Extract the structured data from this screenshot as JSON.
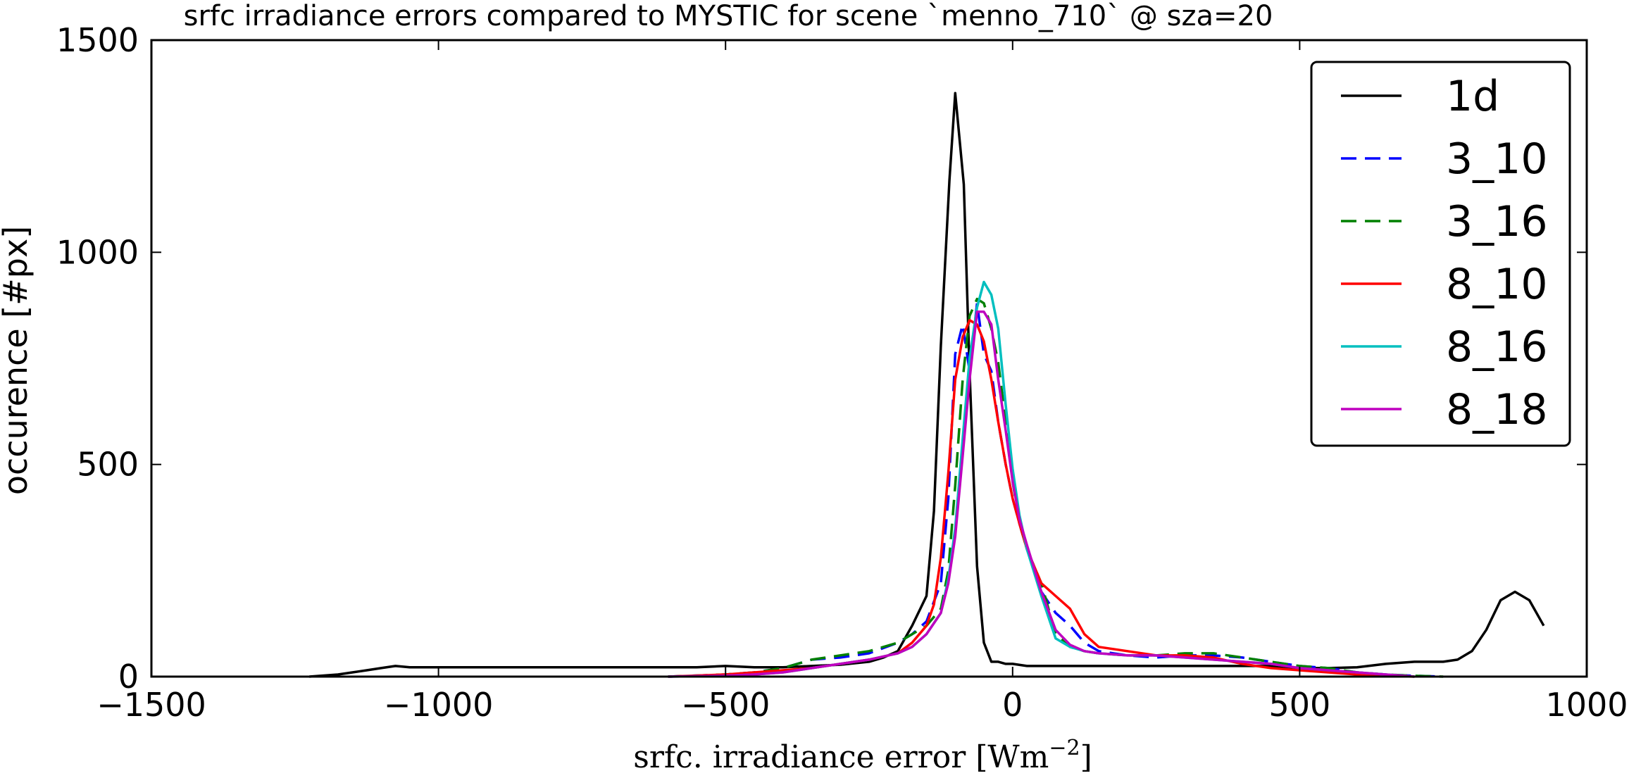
{
  "chart_data": {
    "type": "line",
    "title": "srfc irradiance errors compared to MYSTIC for scene `menno_710` @ sza=20",
    "xlabel": "srfc.  irradiance error [Wm",
    "xlabel_exp": "−2",
    "xlabel_close": "]",
    "ylabel": "occurence [#px]",
    "xlim": [
      -1500,
      1000
    ],
    "ylim": [
      0,
      1500
    ],
    "xticks": [
      -1500,
      -1000,
      -500,
      0,
      500,
      1000
    ],
    "xtick_labels": [
      "−1500",
      "−1000",
      "−500",
      "0",
      "500",
      "1000"
    ],
    "yticks": [
      0,
      500,
      1000,
      1500
    ],
    "ytick_labels": [
      "0",
      "500",
      "1000",
      "1500"
    ],
    "grid": false,
    "legend_position": "top-right",
    "series": [
      {
        "name": "1d",
        "color": "#000000",
        "dash": "solid",
        "x": [
          -1225,
          -1175,
          -1150,
          -1125,
          -1100,
          -1075,
          -1050,
          -1000,
          -950,
          -900,
          -850,
          -800,
          -750,
          -700,
          -650,
          -600,
          -550,
          -500,
          -450,
          -400,
          -350,
          -300,
          -250,
          -225,
          -200,
          -175,
          -150,
          -137,
          -125,
          -110,
          -100,
          -85,
          -75,
          -62,
          -50,
          -37,
          -25,
          -12,
          0,
          25,
          50,
          100,
          150,
          200,
          250,
          300,
          350,
          400,
          450,
          500,
          550,
          600,
          650,
          700,
          750,
          775,
          800,
          825,
          850,
          875,
          900,
          925
        ],
        "y": [
          0,
          5,
          10,
          15,
          20,
          25,
          22,
          22,
          22,
          22,
          22,
          22,
          22,
          22,
          22,
          22,
          22,
          25,
          22,
          22,
          25,
          28,
          35,
          45,
          60,
          120,
          190,
          390,
          780,
          1170,
          1375,
          1160,
          720,
          260,
          80,
          35,
          35,
          30,
          30,
          25,
          25,
          25,
          25,
          25,
          25,
          25,
          25,
          25,
          25,
          20,
          20,
          22,
          30,
          35,
          35,
          40,
          60,
          110,
          180,
          200,
          180,
          120
        ]
      },
      {
        "name": "3_10",
        "color": "#0000ff",
        "dash": "dashed",
        "x": [
          -600,
          -500,
          -450,
          -400,
          -350,
          -300,
          -250,
          -200,
          -175,
          -150,
          -125,
          -112,
          -100,
          -87,
          -75,
          -62,
          -50,
          -37,
          -25,
          -12,
          0,
          12,
          25,
          50,
          75,
          100,
          125,
          150,
          200,
          250,
          300,
          350,
          400,
          450,
          500,
          550,
          600,
          650,
          700,
          750
        ],
        "y": [
          0,
          5,
          10,
          20,
          40,
          45,
          55,
          80,
          100,
          130,
          220,
          420,
          760,
          830,
          720,
          880,
          760,
          720,
          600,
          500,
          420,
          360,
          300,
          200,
          150,
          120,
          80,
          60,
          50,
          45,
          50,
          50,
          45,
          35,
          25,
          20,
          10,
          5,
          2,
          0
        ]
      },
      {
        "name": "3_16",
        "color": "#008000",
        "dash": "dashed",
        "x": [
          -600,
          -500,
          -450,
          -400,
          -350,
          -300,
          -250,
          -200,
          -175,
          -150,
          -125,
          -112,
          -100,
          -87,
          -75,
          -62,
          -50,
          -37,
          -25,
          -12,
          0,
          12,
          25,
          50,
          75,
          100,
          125,
          150,
          200,
          250,
          300,
          350,
          400,
          450,
          500,
          550,
          600,
          650,
          700,
          750
        ],
        "y": [
          0,
          5,
          10,
          20,
          40,
          50,
          60,
          80,
          100,
          120,
          160,
          250,
          450,
          700,
          850,
          890,
          880,
          820,
          740,
          600,
          460,
          360,
          300,
          220,
          100,
          70,
          60,
          55,
          50,
          50,
          55,
          55,
          45,
          35,
          25,
          20,
          10,
          5,
          2,
          0
        ]
      },
      {
        "name": "8_10",
        "color": "#ff0000",
        "dash": "solid",
        "x": [
          -600,
          -500,
          -450,
          -400,
          -350,
          -300,
          -250,
          -200,
          -175,
          -150,
          -137,
          -125,
          -112,
          -100,
          -87,
          -75,
          -62,
          -50,
          -37,
          -25,
          -12,
          0,
          12,
          25,
          50,
          75,
          100,
          125,
          150,
          200,
          250,
          300,
          350,
          400,
          450,
          500,
          550,
          600,
          650,
          700
        ],
        "y": [
          0,
          5,
          10,
          15,
          20,
          30,
          40,
          55,
          80,
          120,
          170,
          280,
          480,
          700,
          800,
          840,
          830,
          790,
          700,
          600,
          500,
          420,
          360,
          300,
          220,
          190,
          160,
          100,
          70,
          60,
          50,
          50,
          45,
          30,
          20,
          15,
          10,
          5,
          2,
          0
        ]
      },
      {
        "name": "8_16",
        "color": "#00bfbf",
        "dash": "solid",
        "x": [
          -600,
          -500,
          -450,
          -400,
          -350,
          -300,
          -250,
          -200,
          -175,
          -150,
          -125,
          -112,
          -100,
          -87,
          -75,
          -62,
          -50,
          -37,
          -25,
          -12,
          0,
          12,
          25,
          50,
          75,
          100,
          125,
          150,
          200,
          250,
          300,
          350,
          400,
          450,
          500,
          550,
          600,
          650,
          700
        ],
        "y": [
          0,
          2,
          5,
          10,
          20,
          30,
          40,
          55,
          70,
          100,
          150,
          230,
          350,
          560,
          750,
          870,
          930,
          900,
          820,
          640,
          490,
          380,
          300,
          190,
          90,
          70,
          60,
          55,
          50,
          50,
          45,
          40,
          35,
          30,
          20,
          15,
          10,
          5,
          0
        ]
      },
      {
        "name": "8_18",
        "color": "#bf00bf",
        "dash": "solid",
        "x": [
          -600,
          -500,
          -450,
          -400,
          -350,
          -300,
          -250,
          -200,
          -175,
          -150,
          -125,
          -112,
          -100,
          -87,
          -75,
          -62,
          -50,
          -37,
          -25,
          -12,
          0,
          12,
          25,
          50,
          75,
          100,
          125,
          150,
          200,
          250,
          300,
          350,
          400,
          450,
          500,
          550,
          600,
          650,
          700
        ],
        "y": [
          0,
          2,
          5,
          10,
          20,
          30,
          40,
          55,
          70,
          100,
          150,
          220,
          330,
          520,
          700,
          860,
          860,
          830,
          700,
          580,
          460,
          370,
          310,
          200,
          110,
          75,
          60,
          55,
          50,
          50,
          45,
          40,
          35,
          30,
          20,
          15,
          10,
          5,
          0
        ]
      }
    ]
  }
}
